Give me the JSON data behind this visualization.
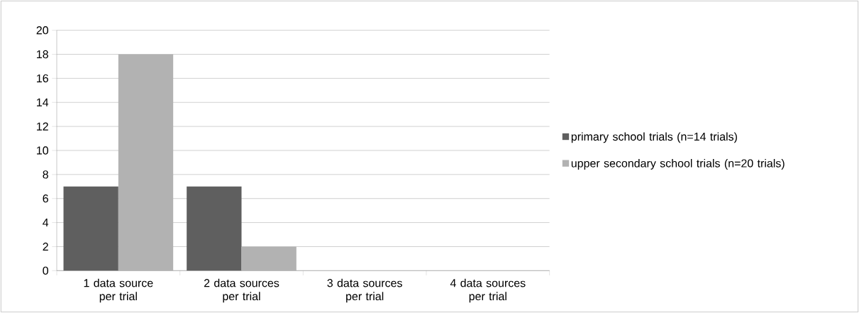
{
  "chart_data": {
    "type": "bar",
    "categories": [
      "1 data source per trial",
      "2 data sources per trial",
      "3 data sources per trial",
      "4 data sources per trial"
    ],
    "series": [
      {
        "name": "primary school trials (n=14 trials)",
        "color": "#5f5f5f",
        "values": [
          7,
          7,
          0,
          0
        ]
      },
      {
        "name": "upper secondary school trials (n=20 trials)",
        "color": "#b2b2b2",
        "values": [
          18,
          2,
          0,
          0
        ]
      }
    ],
    "ylim": [
      0,
      20
    ],
    "yticks": [
      0,
      2,
      4,
      6,
      8,
      10,
      12,
      14,
      16,
      18,
      20
    ],
    "grid": "y",
    "legend": "right"
  }
}
